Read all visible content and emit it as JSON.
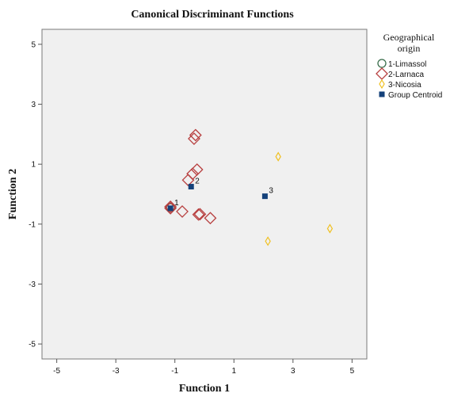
{
  "chart_data": {
    "type": "scatter",
    "title": "Canonical Discriminant Functions",
    "xlabel": "Function 1",
    "ylabel": "Function 2",
    "xlim": [
      -5.5,
      5.5
    ],
    "ylim": [
      -5.5,
      5.5
    ],
    "xticks": [
      -5,
      -3,
      -1,
      1,
      3,
      5
    ],
    "yticks": [
      -5,
      -3,
      -1,
      1,
      3,
      5
    ],
    "grid": false,
    "legend": {
      "title_lines": [
        "Geographical",
        "origin"
      ],
      "placement": "right",
      "entries": [
        {
          "label": "1-Limassol",
          "marker": "circle",
          "color": "#3a6e4c"
        },
        {
          "label": "2-Larnaca",
          "marker": "diamond",
          "color": "#b84040"
        },
        {
          "label": "3-Nicosia",
          "marker": "thin-diamond",
          "color": "#f0c020"
        },
        {
          "label": "Group Centroid",
          "marker": "square",
          "color": "#14417a"
        }
      ]
    },
    "series": [
      {
        "name": "1-Limassol",
        "marker": "circle",
        "color": "#3a6e4c",
        "points": [
          [
            -1.15,
            -0.45
          ]
        ]
      },
      {
        "name": "2-Larnaca",
        "marker": "diamond",
        "color": "#b84040",
        "points": [
          [
            -0.3,
            1.97
          ],
          [
            -0.35,
            1.85
          ],
          [
            -0.25,
            0.82
          ],
          [
            -0.4,
            0.68
          ],
          [
            -0.55,
            0.47
          ],
          [
            -1.15,
            -0.42
          ],
          [
            -1.15,
            -0.47
          ],
          [
            -0.75,
            -0.58
          ],
          [
            -0.15,
            -0.67
          ],
          [
            -0.2,
            -0.68
          ],
          [
            0.2,
            -0.8
          ]
        ]
      },
      {
        "name": "3-Nicosia",
        "marker": "thin-diamond",
        "color": "#f0c020",
        "points": [
          [
            2.5,
            1.25
          ],
          [
            4.25,
            -1.15
          ],
          [
            2.15,
            -1.57
          ]
        ]
      },
      {
        "name": "Group Centroid",
        "marker": "square",
        "color": "#14417a",
        "points": [
          [
            -1.15,
            -0.47
          ],
          [
            -0.45,
            0.25
          ],
          [
            2.05,
            -0.07
          ]
        ],
        "labels": [
          "1",
          "2",
          "3"
        ]
      }
    ]
  }
}
